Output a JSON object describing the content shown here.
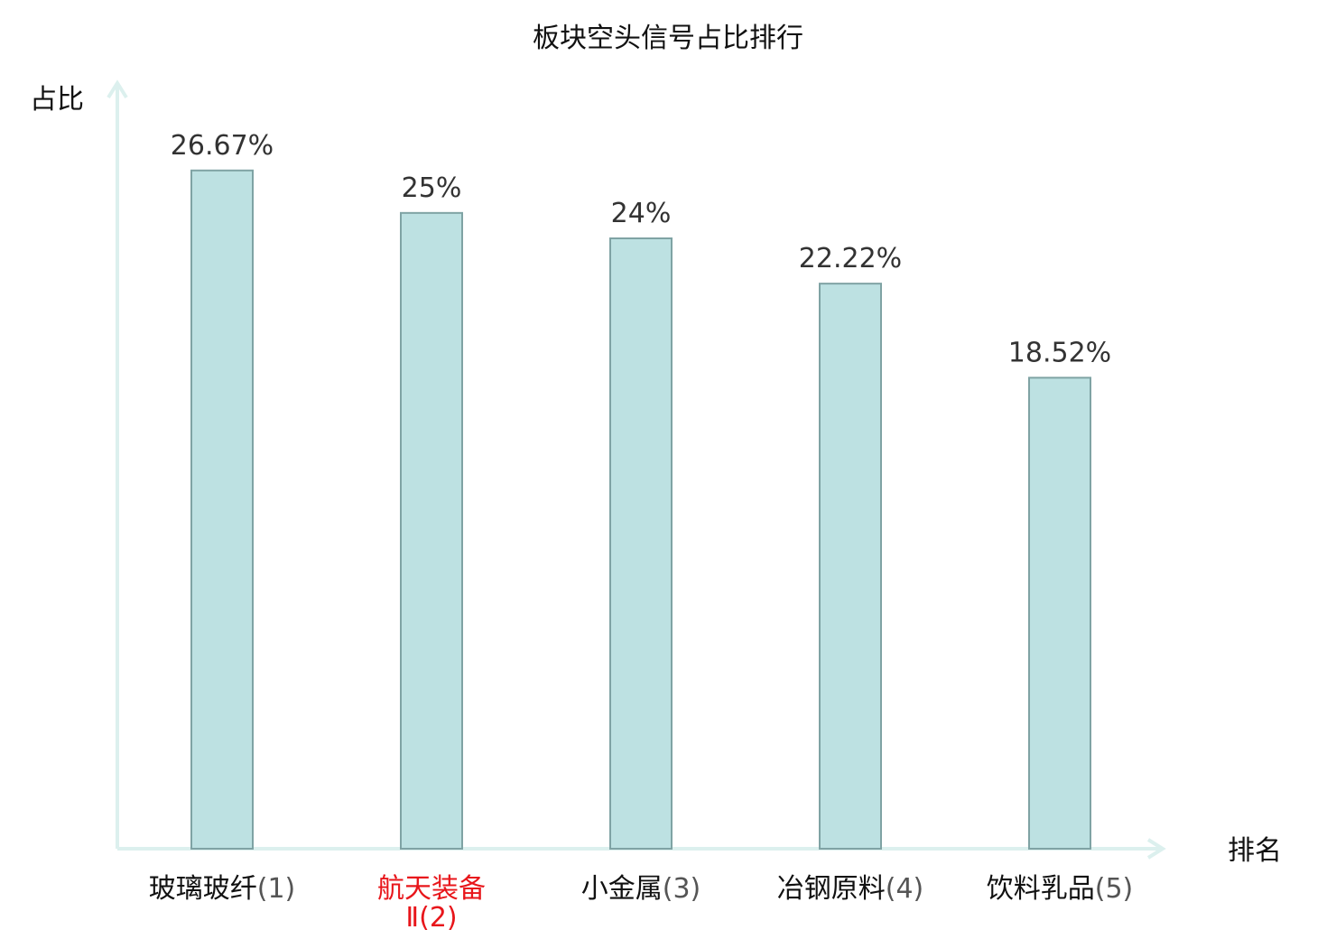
{
  "chart_data": {
    "type": "bar",
    "title": "板块空头信号占比排行",
    "ylabel": "占比",
    "xlabel": "排名",
    "ylim": [
      0,
      30
    ],
    "grid": false,
    "categories": [
      {
        "name": "玻璃玻纤",
        "rank": "(1)",
        "highlight": false
      },
      {
        "name": "航天装备",
        "name_line2": "Ⅱ",
        "rank": "(2)",
        "highlight": true
      },
      {
        "name": "小金属",
        "rank": "(3)",
        "highlight": false
      },
      {
        "name": "冶钢原料",
        "rank": "(4)",
        "highlight": false
      },
      {
        "name": "饮料乳品",
        "rank": "(5)",
        "highlight": false
      }
    ],
    "values": [
      26.67,
      25,
      24,
      22.22,
      18.52
    ],
    "value_labels": [
      "26.67%",
      "25%",
      "24%",
      "22.22%",
      "18.52%"
    ]
  },
  "colors": {
    "bar_fill": "#bde1e2",
    "bar_stroke": "#7fa3a4",
    "axis": "#dcf0ee",
    "highlight_text": "#e8161b",
    "text": "#111111"
  }
}
